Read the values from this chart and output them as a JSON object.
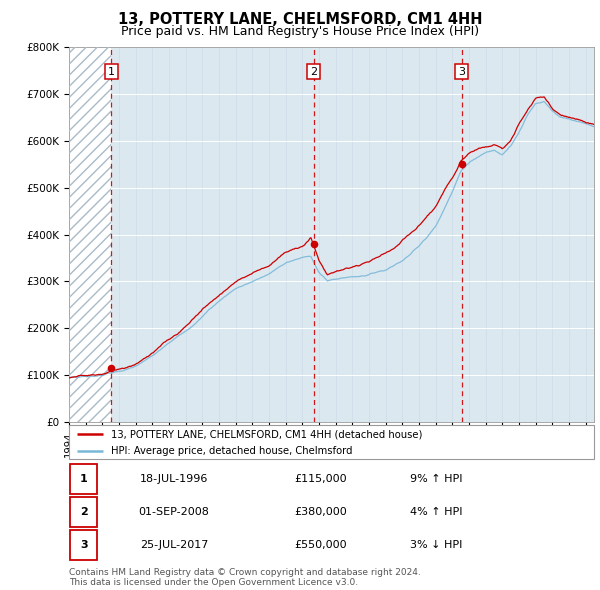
{
  "title": "13, POTTERY LANE, CHELMSFORD, CM1 4HH",
  "subtitle": "Price paid vs. HM Land Registry's House Price Index (HPI)",
  "xlim_start": 1994.0,
  "xlim_end": 2025.5,
  "ylim": [
    0,
    800000
  ],
  "yticks": [
    0,
    100000,
    200000,
    300000,
    400000,
    500000,
    600000,
    700000,
    800000
  ],
  "ytick_labels": [
    "£0",
    "£100K",
    "£200K",
    "£300K",
    "£400K",
    "£500K",
    "£600K",
    "£700K",
    "£800K"
  ],
  "sale_dates": [
    1996.54,
    2008.67,
    2017.56
  ],
  "sale_prices": [
    115000,
    380000,
    550000
  ],
  "sale_labels": [
    "1",
    "2",
    "3"
  ],
  "hpi_color": "#7ab8d8",
  "price_color": "#cc0000",
  "dot_color": "#cc0000",
  "vline_color": "#cc0000",
  "background_plot": "#dce8f0",
  "legend_label_price": "13, POTTERY LANE, CHELMSFORD, CM1 4HH (detached house)",
  "legend_label_hpi": "HPI: Average price, detached house, Chelmsford",
  "table_rows": [
    [
      "1",
      "18-JUL-1996",
      "£115,000",
      "9% ↑ HPI"
    ],
    [
      "2",
      "01-SEP-2008",
      "£380,000",
      "4% ↑ HPI"
    ],
    [
      "3",
      "25-JUL-2017",
      "£550,000",
      "3% ↓ HPI"
    ]
  ],
  "footer": "Contains HM Land Registry data © Crown copyright and database right 2024.\nThis data is licensed under the Open Government Licence v3.0.",
  "title_fontsize": 10.5,
  "subtitle_fontsize": 9,
  "tick_fontsize": 7.5,
  "note_fontsize": 6.5
}
